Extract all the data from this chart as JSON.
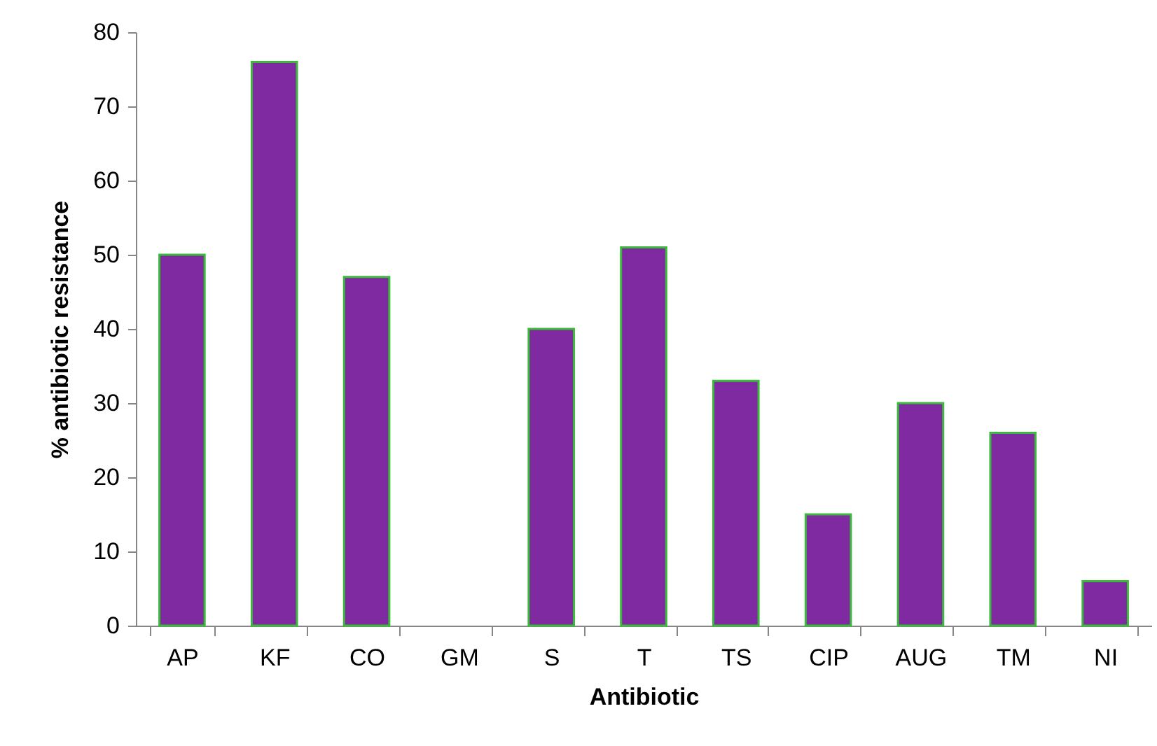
{
  "chart_data": {
    "type": "bar",
    "xlabel": "Antibiotic",
    "ylabel": "% antibiotic resistance",
    "categories": [
      "AP",
      "KF",
      "CO",
      "GM",
      "S",
      "T",
      "TS",
      "CIP",
      "AUG",
      "TM",
      "NI"
    ],
    "values": [
      50,
      76,
      47,
      0,
      40,
      51,
      33,
      15,
      30,
      26,
      6
    ],
    "color": "#7f2aa0",
    "ylim": [
      0,
      80
    ],
    "yticks": [
      0,
      10,
      20,
      30,
      40,
      50,
      60,
      70,
      80
    ],
    "grid": false
  }
}
